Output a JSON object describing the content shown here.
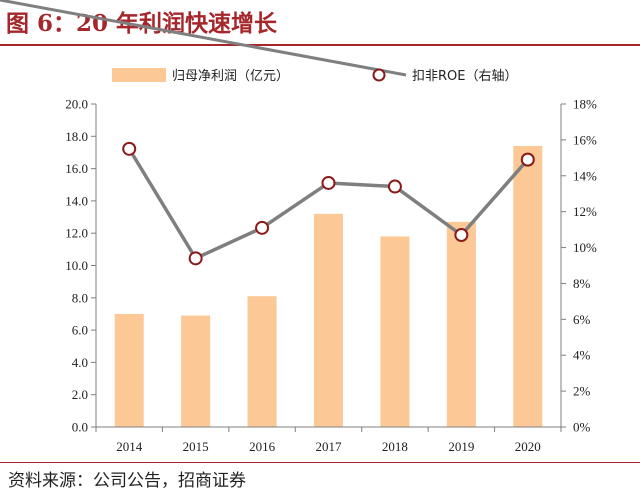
{
  "figure": {
    "title": "图 6：20 年利润快速增长",
    "source": "资料来源：公司公告，招商证券"
  },
  "colors": {
    "title": "#a5262b",
    "bar": "#fcc895",
    "line": "#7f7f7f",
    "marker_edge": "#8b1a1a",
    "marker_fill": "#ffffff",
    "axis": "#7f7f7f"
  },
  "chart_data": {
    "type": "bar+line",
    "categories": [
      "2014",
      "2015",
      "2016",
      "2017",
      "2018",
      "2019",
      "2020"
    ],
    "series": [
      {
        "name": "归母净利润（亿元）",
        "type": "bar",
        "axis": "left",
        "values": [
          7.0,
          6.9,
          8.1,
          13.2,
          11.8,
          12.7,
          17.4
        ]
      },
      {
        "name": "扣非ROE（右轴）",
        "type": "line",
        "axis": "right",
        "values": [
          15.5,
          9.4,
          11.1,
          13.6,
          13.4,
          10.7,
          14.9
        ]
      }
    ],
    "y_left": {
      "min": 0,
      "max": 20,
      "step": 2,
      "ticks": [
        "0.0",
        "2.0",
        "4.0",
        "6.0",
        "8.0",
        "10.0",
        "12.0",
        "14.0",
        "16.0",
        "18.0",
        "20.0"
      ]
    },
    "y_right": {
      "min": 0,
      "max": 18,
      "step": 2,
      "ticks": [
        "0%",
        "2%",
        "4%",
        "6%",
        "8%",
        "10%",
        "12%",
        "14%",
        "16%",
        "18%"
      ]
    },
    "grid": false,
    "legend_position": "top"
  }
}
